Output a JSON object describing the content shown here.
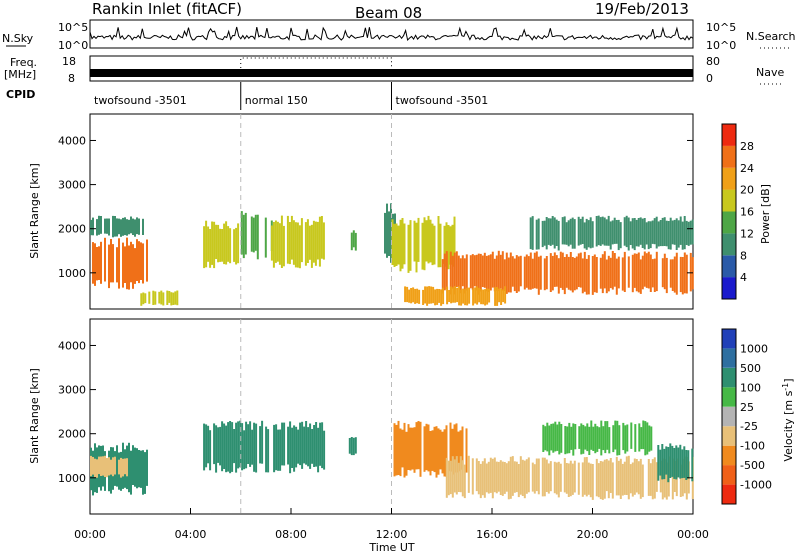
{
  "header": {
    "station": "Rankin Inlet (fitACF)",
    "beam": "Beam 08",
    "date": "19/Feb/2013"
  },
  "top_panels": {
    "nsky_label": "N.Sky",
    "nsky_ticks": [
      "10^5",
      "10^0"
    ],
    "nsearch_label": "N.Search",
    "nsearch_ticks": [
      "10^5",
      "10^0"
    ],
    "freq_label_line1": "Freq.",
    "freq_label_line2": "[MHz]",
    "freq_ticks": [
      "18",
      "8"
    ],
    "nave_label": "Nave",
    "nave_ticks": [
      "80",
      "0"
    ],
    "cpid_label": "CPID",
    "cpid_segments": [
      {
        "label": "twofsound -3501",
        "start": 0,
        "end": 6
      },
      {
        "label": "normal 150",
        "start": 6,
        "end": 12
      },
      {
        "label": "twofsound -3501",
        "start": 12,
        "end": 24
      }
    ]
  },
  "chart_data": [
    {
      "type": "heatmap",
      "name": "power",
      "ylabel": "Slant Range [km]",
      "xlabel": "Time UT",
      "xlim": [
        0,
        24
      ],
      "ylim": [
        180,
        4600
      ],
      "x_ticks": [
        "00:00",
        "04:00",
        "08:00",
        "12:00",
        "16:00",
        "20:00",
        "00:00"
      ],
      "y_ticks": [
        1000,
        2000,
        3000,
        4000
      ],
      "colorbar": {
        "label": "Power [dB]",
        "ticks": [
          "4",
          "8",
          "12",
          "16",
          "20",
          "24",
          "28"
        ],
        "colors": [
          "#1a1acc",
          "#2a5aa8",
          "#3f8f6e",
          "#4ea646",
          "#c8c81e",
          "#f0a018",
          "#f07018",
          "#ee2a10"
        ]
      },
      "regions": [
        {
          "t0": 0.0,
          "t1": 2.3,
          "r0": 600,
          "r1": 1800,
          "level": 28
        },
        {
          "t0": 0.0,
          "t1": 2.2,
          "r0": 1800,
          "r1": 2300,
          "level": 12
        },
        {
          "t0": 2.0,
          "t1": 3.5,
          "r0": 250,
          "r1": 600,
          "level": 20
        },
        {
          "t0": 4.5,
          "t1": 6.0,
          "r0": 1100,
          "r1": 2200,
          "level": 20
        },
        {
          "t0": 6.0,
          "t1": 7.2,
          "r0": 1300,
          "r1": 2400,
          "level": 16
        },
        {
          "t0": 7.2,
          "t1": 9.3,
          "r0": 1100,
          "r1": 2300,
          "level": 20
        },
        {
          "t0": 10.3,
          "t1": 10.6,
          "r0": 1500,
          "r1": 2000,
          "level": 16
        },
        {
          "t0": 11.7,
          "t1": 12.1,
          "r0": 1200,
          "r1": 2600,
          "level": 12
        },
        {
          "t0": 12.0,
          "t1": 14.5,
          "r0": 1000,
          "r1": 2300,
          "level": 20
        },
        {
          "t0": 14.0,
          "t1": 24.0,
          "r0": 500,
          "r1": 1500,
          "level": 28
        },
        {
          "t0": 17.5,
          "t1": 24.0,
          "r0": 1500,
          "r1": 2300,
          "level": 12
        },
        {
          "t0": 12.5,
          "t1": 16.5,
          "r0": 250,
          "r1": 700,
          "level": 24
        }
      ]
    },
    {
      "type": "heatmap",
      "name": "velocity",
      "ylabel": "Slant Range [km]",
      "xlabel": "Time UT",
      "xlim": [
        0,
        24
      ],
      "ylim": [
        180,
        4600
      ],
      "x_ticks": [
        "00:00",
        "04:00",
        "08:00",
        "12:00",
        "16:00",
        "20:00",
        "00:00"
      ],
      "y_ticks": [
        1000,
        2000,
        3000,
        4000
      ],
      "colorbar": {
        "label_main": "Velocity [m s",
        "label_sup": "-1",
        "label_end": "]",
        "ticks": [
          "1000",
          "500",
          "100",
          "25",
          "-25",
          "-100",
          "-500",
          "-1000"
        ],
        "colors": [
          "#2040b8",
          "#2e6fa0",
          "#2e8f70",
          "#46b846",
          "#b4b4b4",
          "#e8c078",
          "#f08a1e",
          "#f06018",
          "#ee2a10"
        ]
      },
      "regions": [
        {
          "t0": 0.0,
          "t1": 2.3,
          "r0": 600,
          "r1": 1800,
          "level": 100
        },
        {
          "t0": 0.0,
          "t1": 1.5,
          "r0": 1000,
          "r1": 1500,
          "level": -100
        },
        {
          "t0": 4.5,
          "t1": 9.3,
          "r0": 1100,
          "r1": 2300,
          "level": 100
        },
        {
          "t0": 10.3,
          "t1": 10.6,
          "r0": 1500,
          "r1": 2000,
          "level": 100
        },
        {
          "t0": 12.0,
          "t1": 15.0,
          "r0": 1000,
          "r1": 2300,
          "level": -500
        },
        {
          "t0": 14.0,
          "t1": 24.0,
          "r0": 500,
          "r1": 1500,
          "level": -100
        },
        {
          "t0": 18.0,
          "t1": 22.5,
          "r0": 1500,
          "r1": 2300,
          "level": 25
        },
        {
          "t0": 22.5,
          "t1": 24.0,
          "r0": 900,
          "r1": 1800,
          "level": 100
        }
      ]
    }
  ]
}
